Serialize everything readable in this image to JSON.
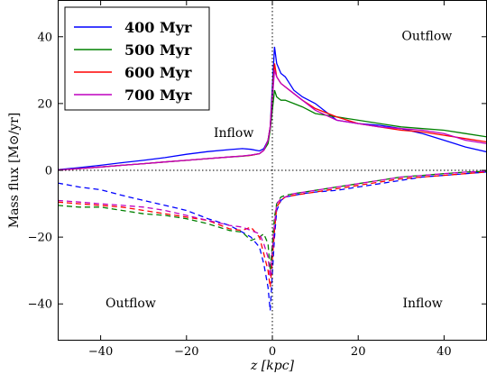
{
  "chart_data": {
    "type": "line",
    "xlabel": "z [kpc]",
    "ylabel": "Mass flux [M⊙/yr]",
    "xlim": [
      -50,
      50
    ],
    "ylim": [
      -51,
      51
    ],
    "xticks": [
      -40,
      -20,
      0,
      20,
      40
    ],
    "yticks": [
      -40,
      -20,
      0,
      20,
      40
    ],
    "xtick_labels": [
      "−40",
      "−20",
      "0",
      "20",
      "40"
    ],
    "ytick_labels": [
      "−40",
      "−20",
      "0",
      "20",
      "40"
    ],
    "reference_lines": {
      "x": 0,
      "y": 0,
      "style": "dotted"
    },
    "legend": {
      "placement": "top-left"
    },
    "annotations": [
      {
        "text": "Outflow",
        "x": 36,
        "y": 39
      },
      {
        "text": "Inflow",
        "x": -9,
        "y": 10
      },
      {
        "text": "Outflow",
        "x": -33,
        "y": -41
      },
      {
        "text": "Inflow",
        "x": 35,
        "y": -41
      }
    ],
    "series": [
      {
        "name": "400 Myr",
        "color": "#0000ff",
        "upper": {
          "x": [
            -50,
            -45,
            -40,
            -35,
            -30,
            -25,
            -20,
            -15,
            -10,
            -7,
            -5,
            -3,
            -2,
            -1,
            -0.5,
            0.5,
            1,
            2,
            3,
            5,
            7,
            10,
            13,
            15,
            20,
            25,
            30,
            35,
            40,
            45,
            50
          ],
          "y": [
            0.2,
            0.8,
            1.5,
            2.3,
            3,
            3.8,
            4.8,
            5.6,
            6.2,
            6.5,
            6.3,
            5.8,
            6.5,
            9,
            13,
            37,
            32,
            29,
            28,
            24,
            22,
            20,
            17,
            15,
            14,
            13.5,
            12.5,
            11,
            9,
            7,
            5.5
          ]
        },
        "lower": {
          "x": [
            -50,
            -45,
            -40,
            -35,
            -30,
            -25,
            -20,
            -15,
            -10,
            -7,
            -5,
            -3,
            -2,
            -1,
            -0.5,
            0.5,
            1,
            2,
            3,
            5,
            7,
            10,
            15,
            20,
            25,
            30,
            35,
            40,
            45,
            50
          ],
          "y": [
            -3.8,
            -5,
            -5.8,
            -7.5,
            -9,
            -10.5,
            -12,
            -14.5,
            -16.5,
            -18.5,
            -20,
            -23,
            -28,
            -35,
            -42,
            -20,
            -12,
            -9,
            -8,
            -7.5,
            -7,
            -6.5,
            -6,
            -5,
            -4,
            -3,
            -2,
            -1.5,
            -1,
            -0.5
          ]
        }
      },
      {
        "name": "500 Myr",
        "color": "#008000",
        "upper": {
          "x": [
            -50,
            -45,
            -40,
            -35,
            -30,
            -25,
            -20,
            -15,
            -10,
            -7,
            -5,
            -3,
            -2,
            -1,
            -0.5,
            0.5,
            1,
            2,
            3,
            5,
            7,
            10,
            15,
            20,
            25,
            30,
            35,
            40,
            45,
            50
          ],
          "y": [
            0.1,
            0.5,
            1,
            1.5,
            2,
            2.5,
            3,
            3.5,
            4,
            4.2,
            4.5,
            5,
            6,
            8,
            12,
            24,
            22,
            21,
            21,
            20,
            19,
            17,
            16,
            15,
            14,
            13,
            12.5,
            12,
            11,
            10
          ]
        },
        "lower": {
          "x": [
            -50,
            -45,
            -40,
            -35,
            -30,
            -25,
            -20,
            -15,
            -10,
            -7,
            -5,
            -3,
            -2,
            -1,
            -0.5,
            0.5,
            1,
            2,
            3,
            5,
            10,
            15,
            20,
            25,
            30,
            35,
            40,
            45,
            50
          ],
          "y": [
            -10.5,
            -11,
            -11,
            -12,
            -13,
            -13.5,
            -14.5,
            -16,
            -18,
            -18.5,
            -21,
            -20,
            -19,
            -22,
            -30,
            -14,
            -10,
            -8,
            -7.5,
            -7,
            -6,
            -5,
            -4,
            -3,
            -2,
            -1.5,
            -1,
            -0.5,
            -0.3
          ]
        }
      },
      {
        "name": "600 Myr",
        "color": "#ff0000",
        "upper": {
          "x": [
            -50,
            -45,
            -40,
            -35,
            -30,
            -25,
            -20,
            -15,
            -10,
            -7,
            -5,
            -3,
            -2,
            -1,
            -0.5,
            0.5,
            1,
            2,
            3,
            5,
            7,
            10,
            15,
            20,
            25,
            30,
            35,
            40,
            45,
            50
          ],
          "y": [
            0.1,
            0.5,
            1,
            1.5,
            2,
            2.5,
            3,
            3.5,
            4,
            4.3,
            4.5,
            5,
            6,
            9,
            13,
            32,
            28,
            26,
            25,
            23,
            21,
            18.5,
            16,
            14,
            13,
            12,
            11.5,
            10.5,
            9.5,
            8.5
          ]
        },
        "lower": {
          "x": [
            -50,
            -45,
            -40,
            -35,
            -30,
            -25,
            -20,
            -15,
            -10,
            -7,
            -5,
            -3,
            -2,
            -1,
            -0.5,
            0.5,
            1,
            2,
            3,
            5,
            10,
            15,
            20,
            25,
            30,
            35,
            40,
            45,
            50
          ],
          "y": [
            -9.5,
            -10,
            -10.5,
            -11,
            -12,
            -13,
            -14,
            -15,
            -17.5,
            -18,
            -17,
            -20,
            -25,
            -30,
            -35,
            -18,
            -11,
            -9,
            -8,
            -7.5,
            -6.5,
            -5.5,
            -4.5,
            -3.5,
            -2.5,
            -2,
            -1.5,
            -1,
            -0.5
          ]
        }
      },
      {
        "name": "700 Myr",
        "color": "#bf00bf",
        "upper": {
          "x": [
            -50,
            -45,
            -40,
            -35,
            -30,
            -25,
            -20,
            -15,
            -10,
            -7,
            -5,
            -3,
            -2,
            -1,
            -0.5,
            0.5,
            1,
            2,
            3,
            5,
            7,
            10,
            15,
            20,
            25,
            30,
            35,
            40,
            45,
            50
          ],
          "y": [
            0.1,
            0.5,
            1,
            1.5,
            2,
            2.5,
            3,
            3.5,
            4,
            4.3,
            4.6,
            5,
            6,
            9,
            13,
            30,
            28,
            26,
            25,
            23,
            21,
            18,
            15,
            14,
            13,
            12.5,
            12,
            11,
            9,
            8
          ]
        },
        "lower": {
          "x": [
            -50,
            -45,
            -40,
            -35,
            -30,
            -25,
            -20,
            -15,
            -10,
            -7,
            -5,
            -3,
            -2,
            -1,
            -0.5,
            0.5,
            1,
            2,
            3,
            5,
            10,
            15,
            20,
            25,
            30,
            35,
            40,
            45,
            50
          ],
          "y": [
            -9,
            -9.5,
            -10,
            -10.5,
            -11,
            -12,
            -13.5,
            -15,
            -16.5,
            -17,
            -18,
            -19,
            -22,
            -26,
            -32,
            -16,
            -10,
            -8.5,
            -8,
            -7,
            -6,
            -5,
            -4,
            -3,
            -2,
            -1.5,
            -1,
            -0.5,
            -0.3
          ]
        }
      }
    ]
  }
}
